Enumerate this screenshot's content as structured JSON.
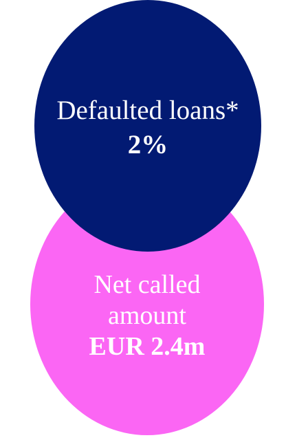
{
  "colors": {
    "navy": "#021a73",
    "pink": "#fb66f4",
    "text": "#ffffff"
  },
  "defaulted": {
    "label": "Defaulted loans*",
    "value": "2%"
  },
  "net_called": {
    "label_line1": "Net called",
    "label_line2": "amount",
    "value": "EUR 2.4m"
  }
}
